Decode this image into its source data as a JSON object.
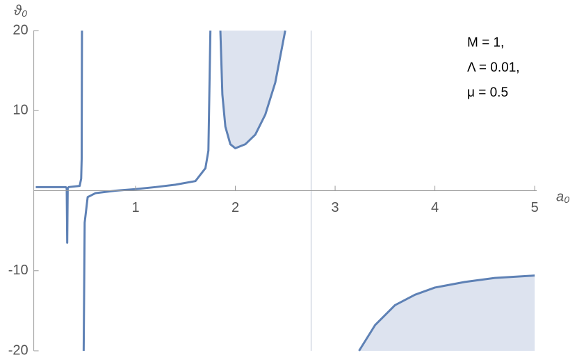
{
  "chart_data": {
    "type": "line",
    "x_label": "a₀",
    "y_label": "ϑ₀",
    "annotations": [
      "M = 1,",
      "Λ = 0.01,",
      "μ = 0.5"
    ],
    "xlim": [
      -0.02,
      5.02
    ],
    "ylim": [
      -20,
      20
    ],
    "xticks": [
      1,
      2,
      3,
      4,
      5
    ],
    "yticks": [
      -20,
      -10,
      10,
      20
    ],
    "vlines": [
      2.76
    ],
    "vline_color": "#d3d8e3",
    "fill_color": "#dde3ef",
    "series": [
      {
        "color": "#5e81b5",
        "fill": "none",
        "x": [
          0,
          0.3,
          0.31,
          0.315,
          0.32,
          0.33,
          0.44,
          0.455,
          0.46,
          0.463
        ],
        "values": [
          0.45,
          0.45,
          0.3,
          -6.5,
          0.3,
          0.45,
          0.6,
          1.5,
          4,
          20
        ]
      },
      {
        "color": "#5e81b5",
        "fill": "none",
        "x": [
          0.48,
          0.49,
          0.52,
          0.6,
          0.8,
          1.0,
          1.2,
          1.4,
          1.6,
          1.7,
          1.73,
          1.75
        ],
        "values": [
          -20,
          -4,
          -0.8,
          -0.3,
          0,
          0.2,
          0.45,
          0.75,
          1.2,
          2.8,
          5,
          20
        ]
      },
      {
        "color": "#5e81b5",
        "fill": "top",
        "x": [
          1.85,
          1.87,
          1.9,
          1.95,
          2.0,
          2.1,
          2.2,
          2.3,
          2.4,
          2.5
        ],
        "values": [
          20,
          12,
          8,
          5.8,
          5.3,
          5.8,
          7,
          9.5,
          13.5,
          20
        ]
      },
      {
        "color": "#5e81b5",
        "fill": "bottom",
        "x": [
          3.24,
          3.4,
          3.6,
          3.8,
          4.0,
          4.3,
          4.6,
          5.0
        ],
        "values": [
          -20,
          -16.8,
          -14.3,
          -13,
          -12.1,
          -11.4,
          -10.9,
          -10.6
        ]
      }
    ]
  }
}
